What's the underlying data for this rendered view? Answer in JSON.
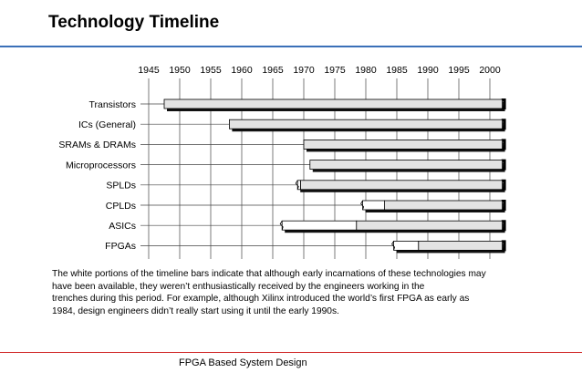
{
  "slide": {
    "title": "Technology Timeline",
    "caption_lines": [
      "The white portions of the timeline bars indicate that although early incarnations of these technologies  may",
      "have been available, they weren’t enthusiastically received by the engineers working in  the",
      "trenches during this period. For example, although Xilinx introduced the world’s first FPGA as early as",
      "1984, design engineers didn’t really start using it until the early 1990s."
    ],
    "footer": "FPGA Based System Design"
  },
  "colors": {
    "title_rule": "#3a70b8",
    "footer_rule": "#d12a2a",
    "bar_fill": "#e3e3e3",
    "bar_white": "#ffffff",
    "bar_shadow": "#111111",
    "grid": "#444444"
  },
  "chart_data": {
    "type": "bar",
    "orientation": "horizontal",
    "title": "",
    "xlabel": "",
    "ylabel": "",
    "xlim": [
      1945,
      2002
    ],
    "x_ticks": [
      1945,
      1950,
      1955,
      1960,
      1965,
      1970,
      1975,
      1980,
      1985,
      1990,
      1995,
      2000
    ],
    "x_tick_labels": [
      "1945",
      "1950",
      "1955",
      "1960",
      "1965",
      "1970",
      "1975",
      "1980",
      "1985",
      "1990",
      "1995",
      "2000"
    ],
    "grid": true,
    "categories": [
      "Transistors",
      "ICs (General)",
      "SRAMs & DRAMs",
      "Microprocessors",
      "SPLDs",
      "CPLDs",
      "ASICs",
      "FPGAs"
    ],
    "bars": [
      {
        "label": "Transistors",
        "early_start": 1947.5,
        "adopted_start": 1947.5,
        "end": 2002
      },
      {
        "label": "ICs (General)",
        "early_start": 1958,
        "adopted_start": 1958,
        "end": 2002
      },
      {
        "label": "SRAMs & DRAMs",
        "early_start": 1970,
        "adopted_start": 1970,
        "end": 2002
      },
      {
        "label": "Microprocessors",
        "early_start": 1971,
        "adopted_start": 1971,
        "end": 2002
      },
      {
        "label": "SPLDs",
        "early_start": 1969,
        "adopted_start": 1969.5,
        "end": 2002
      },
      {
        "label": "CPLDs",
        "early_start": 1979.5,
        "adopted_start": 1983,
        "end": 2002
      },
      {
        "label": "ASICs",
        "early_start": 1966.5,
        "adopted_start": 1978.5,
        "end": 2002
      },
      {
        "label": "FPGAs",
        "early_start": 1984.5,
        "adopted_start": 1988.5,
        "end": 2002
      }
    ]
  }
}
